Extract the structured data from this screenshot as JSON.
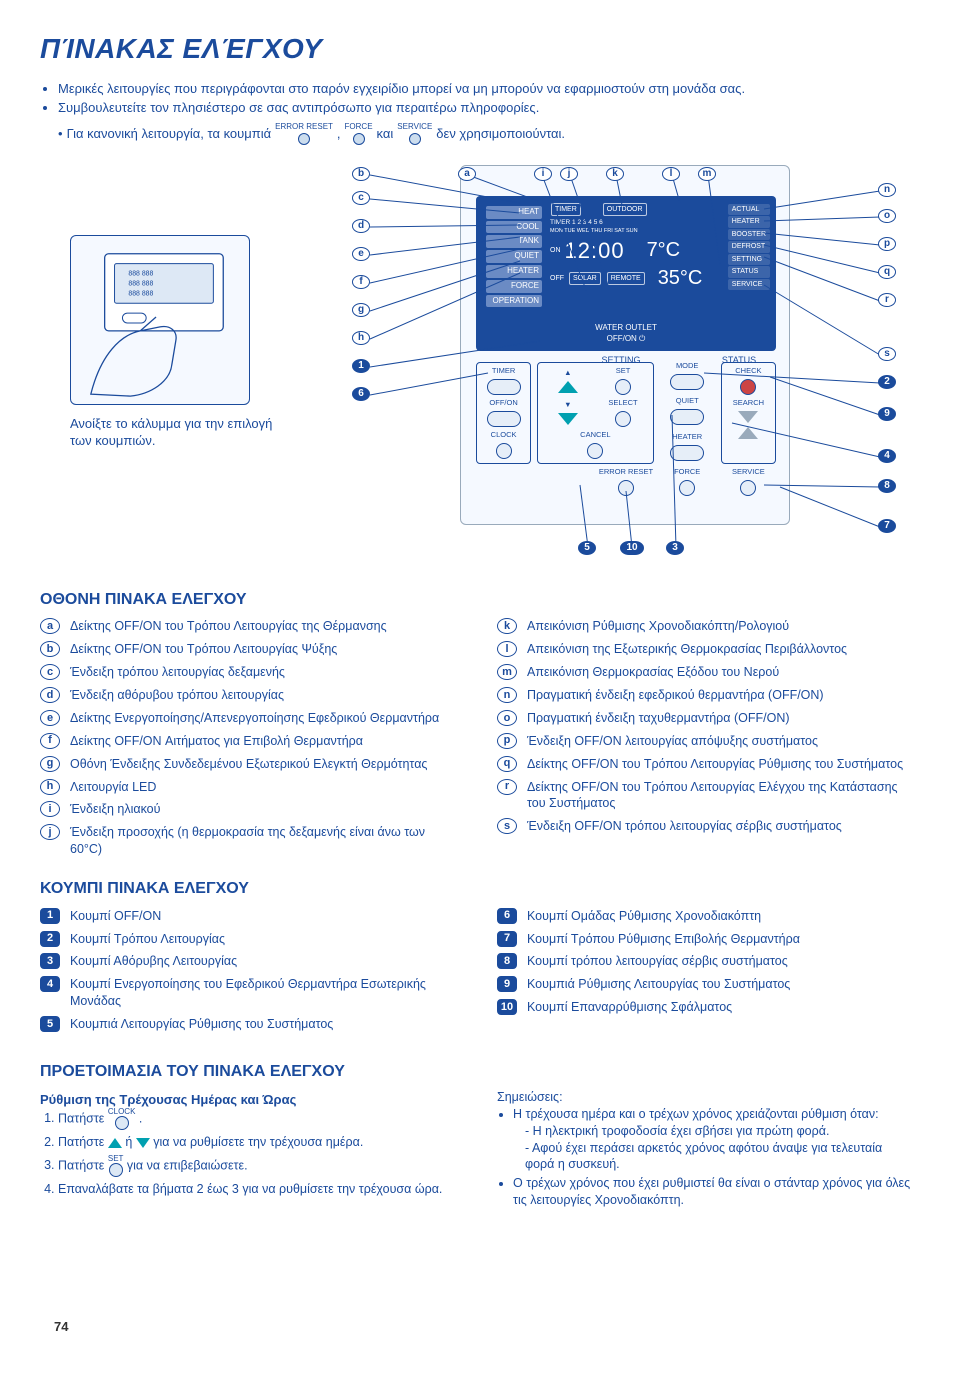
{
  "page_number": "74",
  "title": "ΠΊΝΑΚΑΣ ΕΛΈΓΧΟΥ",
  "intro_bullets": [
    "Μερικές λειτουργίες που περιγράφονται στο παρόν εγχειρίδιο μπορεί να μη μπορούν να εφαρμιοστούν στη μονάδα σας.",
    "Συμβουλευτείτε τον πλησιέστερο σε σας αντιπρόσωπο για περαιτέρω πληροφορίες."
  ],
  "intro_line3_before": "Για κανονική λειτουργία, τα κουμπιά",
  "intro_line3_after": "δεν χρησιμοποιούνται.",
  "mini_btn_labels": {
    "a": "ERROR RESET",
    "b": "FORCE",
    "c": "SERVICE"
  },
  "hand_caption": "Ανοίξτε το κάλυμμα για την επιλογή των κουμπιών.",
  "lcd": {
    "sidebar": [
      "HEAT",
      "COOL",
      "TANK",
      "QUIET",
      "HEATER",
      "FORCE",
      "OPERATION"
    ],
    "timer_title": "TIMER",
    "outdoor": "OUTDOOR",
    "timer_sub": "TIMER 1 2 3 4 5 6",
    "days": "MON TUE WED THU FRI SAT SUN",
    "on": "ON",
    "off": "OFF",
    "clock": "12:00",
    "solar": "SOLAR",
    "remote": "REMOTE",
    "outdoor_temp": "7°C",
    "water_temp": "35°C",
    "right": [
      "ACTUAL",
      "HEATER",
      "BOOSTER",
      "DEFROST",
      "SETTING",
      "STATUS",
      "SERVICE"
    ],
    "water_outlet": "WATER OUTLET",
    "off_on": "OFF/ON"
  },
  "panel_sections": {
    "setting": "SETTING",
    "status": "STATUS"
  },
  "buttons": {
    "timer": "TIMER",
    "set_up": "SET",
    "mode": "MODE",
    "check": "CHECK",
    "off_on": "OFF/ON",
    "select": "SELECT",
    "quiet": "QUIET",
    "heater": "HEATER",
    "search": "SEARCH",
    "clock": "CLOCK",
    "cancel": "CANCEL",
    "error_reset": "ERROR RESET",
    "force": "FORCE",
    "service": "SERVICE"
  },
  "section_display": "ΟΘΟΝΗ ΠΙΝΑΚΑ ΕΛΕΓΧΟΥ",
  "display_items_left": [
    {
      "k": "a",
      "t": "Δείκτης OFF/ON του Τρόπου Λειτουργίας της Θέρμανσης"
    },
    {
      "k": "b",
      "t": "Δείκτης OFF/ON του Τρόπου Λειτουργίας Ψύξης"
    },
    {
      "k": "c",
      "t": "Ένδειξη τρόπου λειτουργίας δεξαμενής"
    },
    {
      "k": "d",
      "t": "Ένδειξη αθόρυβου τρόπου λειτουργίας"
    },
    {
      "k": "e",
      "t": "Δείκτης Ενεργοποίησης/Απενεργοποίησης Εφεδρικού Θερμαντήρα"
    },
    {
      "k": "f",
      "t": "Δείκτης OFF/ON Αιτήματος για Επιβολή Θερμαντήρα"
    },
    {
      "k": "g",
      "t": "Οθόνη Ένδειξης Συνδεδεμένου Εξωτερικού Ελεγκτή Θερμότητας"
    },
    {
      "k": "h",
      "t": "Λειτουργία LED"
    },
    {
      "k": "i",
      "t": "Ένδειξη ηλιακού"
    },
    {
      "k": "j",
      "t": "Ένδειξη προσοχής (η θερμοκρασία της δεξαμενής είναι άνω των 60°C)"
    }
  ],
  "display_items_right": [
    {
      "k": "k",
      "t": "Απεικόνιση Ρύθμισης Χρονοδιακόπτη/Ρολογιού"
    },
    {
      "k": "l",
      "t": "Απεικόνιση της Εξωτερικής Θερμοκρασίας Περιβάλλοντος"
    },
    {
      "k": "m",
      "t": "Απεικόνιση Θερμοκρασίας Εξόδου του Νερού"
    },
    {
      "k": "n",
      "t": "Πραγματική ένδειξη εφεδρικού θερμαντήρα (OFF/ON)"
    },
    {
      "k": "o",
      "t": "Πραγματική ένδειξη ταχυθερμαντήρα (OFF/ON)"
    },
    {
      "k": "p",
      "t": "Ένδειξη OFF/ON λειτουργίας απόψυξης συστήματος"
    },
    {
      "k": "q",
      "t": "Δείκτης OFF/ON του Τρόπου Λειτουργίας Ρύθμισης του Συστήματος"
    },
    {
      "k": "r",
      "t": "Δείκτης OFF/ON του Τρόπου Λειτουργίας Ελέγχου της Κατάστασης του Συστήματος"
    },
    {
      "k": "s",
      "t": "Ένδειξη OFF/ON τρόπου λειτουργίας σέρβις συστήματος"
    }
  ],
  "section_buttons": "ΚΟΥΜΠΙ ΠΙΝΑΚΑ ΕΛΕΓΧΟΥ",
  "button_items_left": [
    {
      "k": "1",
      "t": "Κουμπί OFF/ON"
    },
    {
      "k": "2",
      "t": "Κουμπί Τρόπου Λειτουργίας"
    },
    {
      "k": "3",
      "t": "Κουμπί Αθόρυβης Λειτουργίας"
    },
    {
      "k": "4",
      "t": "Κουμπί Ενεργοποίησης του Εφεδρικού Θερμαντήρα Εσωτερικής Μονάδας"
    },
    {
      "k": "5",
      "t": "Κουμπιά Λειτουργίας Ρύθμισης του Συστήματος"
    }
  ],
  "button_items_right": [
    {
      "k": "6",
      "t": "Κουμπί Ομάδας Ρύθμισης Χρονοδιακόπτη"
    },
    {
      "k": "7",
      "t": "Κουμπί Τρόπου Ρύθμισης Επιβολής Θερμαντήρα"
    },
    {
      "k": "8",
      "t": "Κουμπί τρόπου λειτουργίας σέρβις συστήματος"
    },
    {
      "k": "9",
      "t": "Κουμπιά Ρύθμισης Λειτουργίας του Συστήματος"
    },
    {
      "k": "10",
      "t": "Κουμπί Επαναρρύθμισης Σφάλματος"
    }
  ],
  "section_prep": "ΠΡΟΕΤΟΙΜΑΣΙΑ ΤΟΥ ΠΙΝΑΚΑ ΕΛΕΓΧΟΥ",
  "prep_sub": "Ρύθμιση της Τρέχουσας Ημέρας και Ώρας",
  "prep_steps": {
    "s1a": "Πατήστε",
    "s1_lbl": "CLOCK",
    "s2a": "Πατήστε",
    "s2b": "ή",
    "s2c": "για να ρυθμίσετε την τρέχουσα ημέρα.",
    "s3a": "Πατήστε",
    "s3_lbl": "SET",
    "s3b": "για να επιβεβαιώσετε.",
    "s4": "Επαναλάβατε τα βήματα 2 έως 3 για να ρυθμίσετε την τρέχουσα ώρα."
  },
  "notes_title": "Σημειώσεις:",
  "notes": [
    "Η τρέχουσα ημέρα και ο τρέχων χρόνος χρειάζονται ρύθμιση όταν:",
    "- Η ηλεκτρική τροφοδοσία έχει σβήσει για πρώτη φορά.",
    "- Αφού έχει περάσει αρκετός χρόνος αφότου άναψε για τελευταία φορά η συσκευή.",
    "Ο τρέχων χρόνος που έχει ρυθμιστεί θα είναι ο στάνταρ χρόνος για όλες τις λειτουργίες Χρονοδιακόπτη."
  ],
  "colors": {
    "primary": "#1b4b9c",
    "lcd_bg": "#1b4b9c",
    "teal": "#00a0b0"
  }
}
